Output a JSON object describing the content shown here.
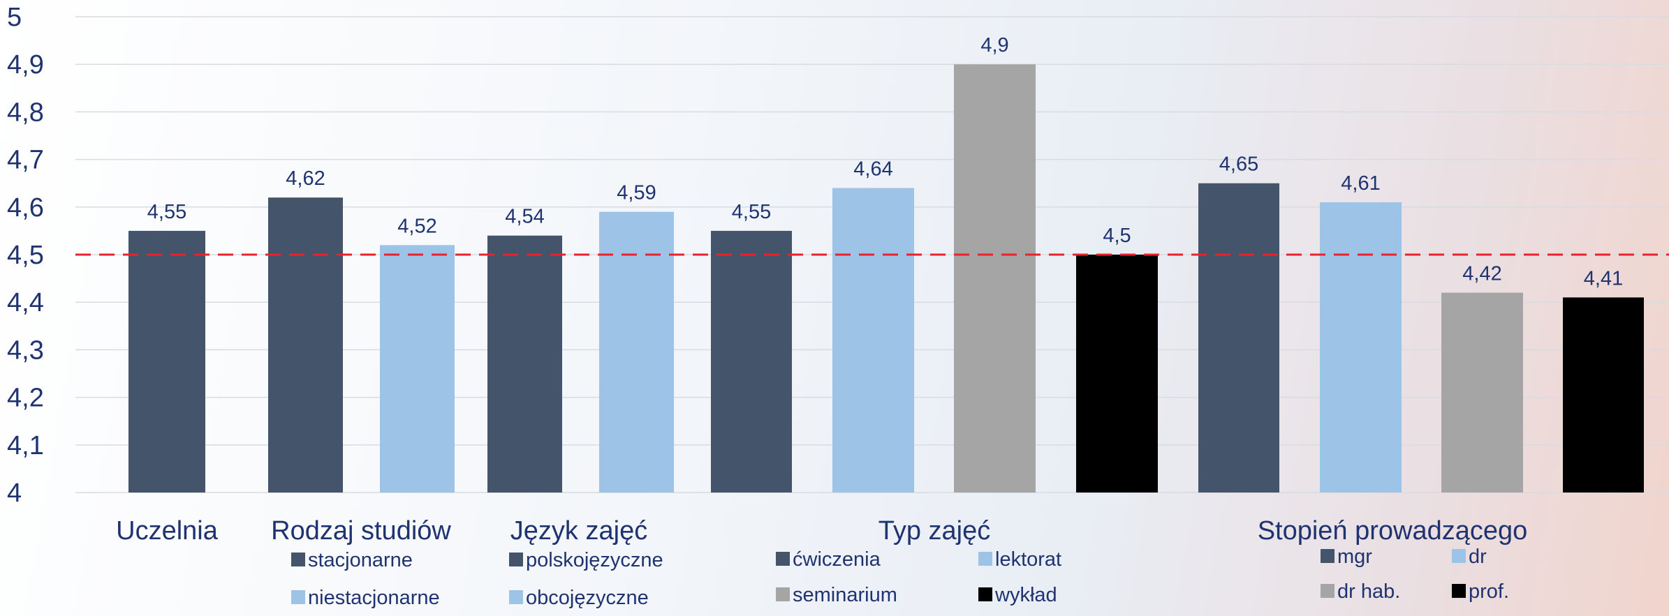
{
  "chart_data": {
    "type": "bar",
    "ylim": [
      4,
      5
    ],
    "yticks": [
      "4",
      "4,1",
      "4,2",
      "4,3",
      "4,4",
      "4,5",
      "4,6",
      "4,7",
      "4,8",
      "4,9",
      "5"
    ],
    "reference_line": {
      "value": 4.5,
      "color": "#e8232b",
      "style": "dashed"
    },
    "colors": {
      "dark": "#44546a",
      "light": "#9dc3e6",
      "gray": "#a5a5a5",
      "black": "#000000"
    },
    "bars": [
      {
        "group": "Uczelnia",
        "value": 4.55,
        "label": "4,55",
        "color": "dark"
      },
      {
        "group": "Rodzaj studiów",
        "value": 4.62,
        "label": "4,62",
        "color": "dark"
      },
      {
        "group": "Rodzaj studiów",
        "value": 4.52,
        "label": "4,52",
        "color": "light"
      },
      {
        "group": "Język zajęć",
        "value": 4.54,
        "label": "4,54",
        "color": "dark"
      },
      {
        "group": "Język zajęć",
        "value": 4.59,
        "label": "4,59",
        "color": "light"
      },
      {
        "group": "Typ zajęć",
        "value": 4.55,
        "label": "4,55",
        "color": "dark"
      },
      {
        "group": "Typ zajęć",
        "value": 4.64,
        "label": "4,64",
        "color": "light"
      },
      {
        "group": "Typ zajęć",
        "value": 4.9,
        "label": "4,9",
        "color": "gray"
      },
      {
        "group": "Typ zajęć",
        "value": 4.5,
        "label": "4,5",
        "color": "black"
      },
      {
        "group": "Stopień prowadzącego",
        "value": 4.65,
        "label": "4,65",
        "color": "dark"
      },
      {
        "group": "Stopień prowadzącego",
        "value": 4.61,
        "label": "4,61",
        "color": "light"
      },
      {
        "group": "Stopień prowadzącego",
        "value": 4.42,
        "label": "4,42",
        "color": "gray"
      },
      {
        "group": "Stopień prowadzącego",
        "value": 4.41,
        "label": "4,41",
        "color": "black"
      }
    ],
    "groups": [
      "Uczelnia",
      "Rodzaj studiów",
      "Język zajęć",
      "Typ zajęć",
      "Stopień prowadzącego"
    ],
    "legends": [
      {
        "group": "Rodzaj studiów",
        "items": [
          {
            "label": "stacjonarne",
            "color": "dark"
          },
          {
            "label": "niestacjonarne",
            "color": "light"
          }
        ]
      },
      {
        "group": "Język zajęć",
        "items": [
          {
            "label": "polskojęzyczne",
            "color": "dark"
          },
          {
            "label": "obcojęzyczne",
            "color": "light"
          }
        ]
      },
      {
        "group": "Typ zajęć",
        "items": [
          {
            "label": "ćwiczenia",
            "color": "dark"
          },
          {
            "label": "lektorat",
            "color": "light"
          },
          {
            "label": "seminarium",
            "color": "gray"
          },
          {
            "label": "wykład",
            "color": "black"
          }
        ]
      },
      {
        "group": "Stopień prowadzącego",
        "items": [
          {
            "label": "mgr",
            "color": "dark"
          },
          {
            "label": "dr",
            "color": "light"
          },
          {
            "label": "dr hab.",
            "color": "gray"
          },
          {
            "label": "prof.",
            "color": "black"
          }
        ]
      }
    ]
  }
}
